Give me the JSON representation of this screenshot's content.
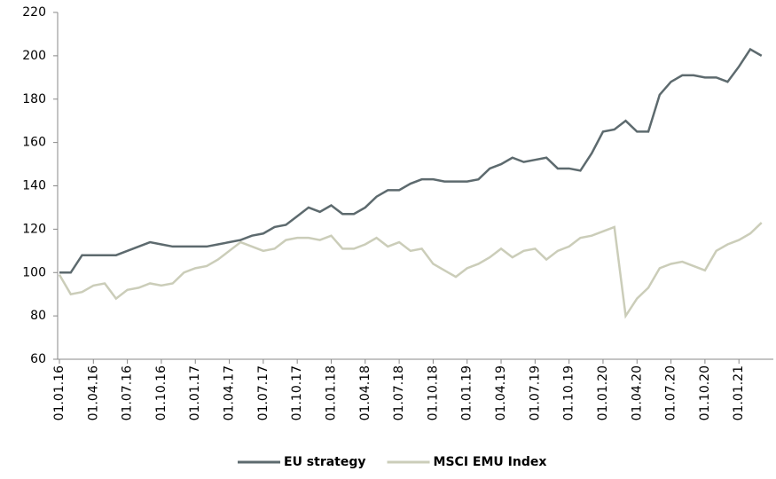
{
  "chart_data": {
    "type": "line",
    "x": [
      "01.01.16",
      "01.02.16",
      "01.03.16",
      "01.04.16",
      "01.05.16",
      "01.06.16",
      "01.07.16",
      "01.08.16",
      "01.09.16",
      "01.10.16",
      "01.11.16",
      "01.12.16",
      "01.01.17",
      "01.02.17",
      "01.03.17",
      "01.04.17",
      "01.05.17",
      "01.06.17",
      "01.07.17",
      "01.08.17",
      "01.09.17",
      "01.10.17",
      "01.11.17",
      "01.12.17",
      "01.01.18",
      "01.02.18",
      "01.03.18",
      "01.04.18",
      "01.05.18",
      "01.06.18",
      "01.07.18",
      "01.08.18",
      "01.09.18",
      "01.10.18",
      "01.11.18",
      "01.12.18",
      "01.01.19",
      "01.02.19",
      "01.03.19",
      "01.04.19",
      "01.05.19",
      "01.06.19",
      "01.07.19",
      "01.08.19",
      "01.09.19",
      "01.10.19",
      "01.11.19",
      "01.12.19",
      "01.01.20",
      "01.02.20",
      "01.03.20",
      "01.04.20",
      "01.05.20",
      "01.06.20",
      "01.07.20",
      "01.08.20",
      "01.09.20",
      "01.10.20",
      "01.11.20",
      "01.12.20",
      "01.01.21",
      "01.02.21",
      "01.03.21"
    ],
    "series": [
      {
        "name": "EU strategy",
        "color": "#5d6a6e",
        "values": [
          100,
          100,
          108,
          108,
          108,
          108,
          110,
          112,
          114,
          113,
          112,
          112,
          112,
          112,
          113,
          114,
          115,
          117,
          118,
          121,
          122,
          126,
          130,
          128,
          131,
          127,
          127,
          130,
          135,
          138,
          138,
          141,
          143,
          143,
          142,
          142,
          142,
          143,
          148,
          150,
          153,
          151,
          152,
          153,
          148,
          148,
          147,
          155,
          165,
          166,
          170,
          165,
          165,
          182,
          188,
          191,
          191,
          190,
          190,
          188,
          195,
          203,
          200
        ]
      },
      {
        "name": "MSCI EMU Index",
        "color": "#cbcdb9",
        "values": [
          99,
          90,
          91,
          94,
          95,
          88,
          92,
          93,
          95,
          94,
          95,
          100,
          102,
          103,
          106,
          110,
          114,
          112,
          110,
          111,
          115,
          116,
          116,
          115,
          117,
          111,
          111,
          113,
          116,
          112,
          114,
          110,
          111,
          104,
          101,
          98,
          102,
          104,
          107,
          111,
          107,
          110,
          111,
          106,
          110,
          112,
          116,
          117,
          119,
          121,
          80,
          88,
          93,
          102,
          104,
          105,
          103,
          101,
          110,
          113,
          115,
          118,
          123
        ]
      }
    ],
    "ylim": [
      60,
      220
    ],
    "yticks": [
      60,
      80,
      100,
      120,
      140,
      160,
      180,
      200,
      220
    ]
  }
}
